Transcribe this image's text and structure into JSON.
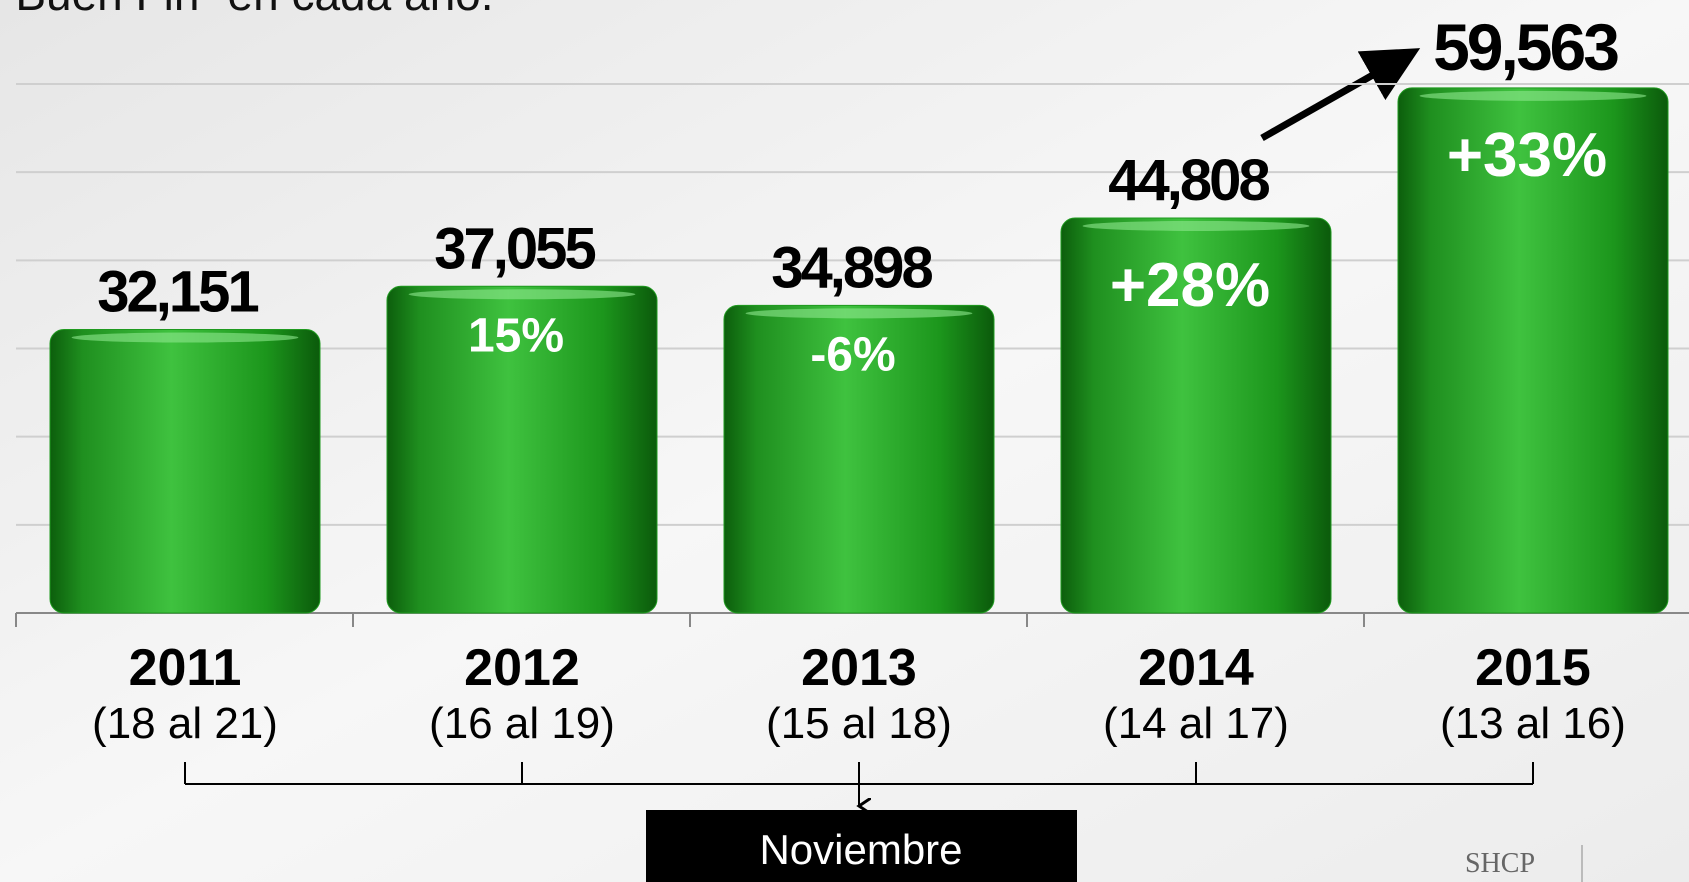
{
  "chart_data": {
    "type": "bar",
    "title": "“Buen Fin” en cada año.",
    "categories": [
      "2011",
      "2012",
      "2013",
      "2014",
      "2015"
    ],
    "category_sublabels": [
      "(18 al 21)",
      "(16 al 19)",
      "(15 al 18)",
      "(14 al 17)",
      "(13 al 16)"
    ],
    "values": [
      32151,
      37055,
      34898,
      44808,
      59563
    ],
    "value_labels": [
      "32,151",
      "37,055",
      "34,898",
      "44,808",
      "59,563"
    ],
    "change_labels": [
      null,
      "15%",
      "-6%",
      "+28%",
      "+33%"
    ],
    "color": "#1f9a1f",
    "ylim": [
      0,
      60000
    ],
    "yticks": [
      0,
      10000,
      20000,
      30000,
      40000,
      50000,
      60000
    ],
    "grid": true,
    "footer": "Noviembre",
    "logo": "SHCP"
  }
}
